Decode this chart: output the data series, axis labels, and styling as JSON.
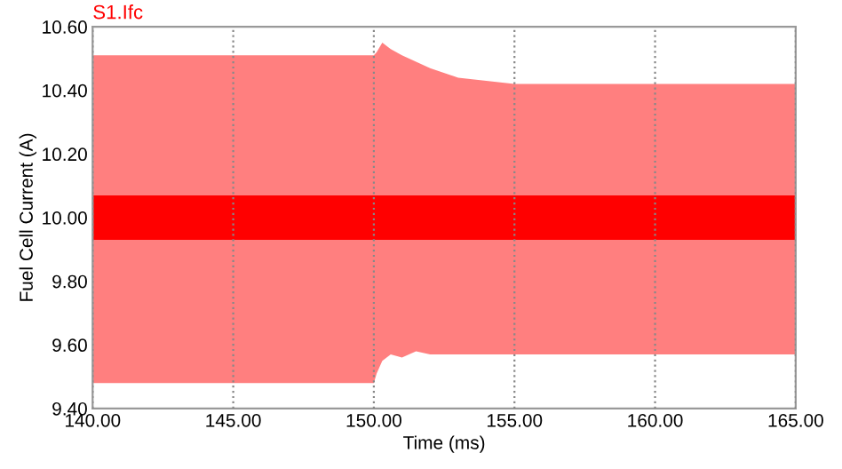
{
  "chart_data": {
    "type": "line",
    "xlabel": "Time (ms)",
    "ylabel": "Fuel Cell Current (A)",
    "xlim": [
      140,
      165
    ],
    "ylim": [
      9.4,
      10.6
    ],
    "xticks": [
      {
        "value": 140,
        "label": "140.00"
      },
      {
        "value": 145,
        "label": "145.00"
      },
      {
        "value": 150,
        "label": "150.00"
      },
      {
        "value": 155,
        "label": "155.00"
      },
      {
        "value": 160,
        "label": "160.00"
      },
      {
        "value": 165,
        "label": "165.00"
      }
    ],
    "yticks": [
      {
        "value": 9.4,
        "label": "9.40"
      },
      {
        "value": 9.6,
        "label": "9.60"
      },
      {
        "value": 9.8,
        "label": "9.80"
      },
      {
        "value": 10.0,
        "label": "10.00"
      },
      {
        "value": 10.2,
        "label": "10.20"
      },
      {
        "value": 10.4,
        "label": "10.40"
      },
      {
        "value": 10.6,
        "label": "10.60"
      }
    ],
    "grid": "x",
    "legend": "top left",
    "line_style": "solid",
    "series": [
      {
        "name": "S1.Ifc",
        "color": "#ff0000",
        "x": [
          140,
          150.0,
          150.1,
          150.3,
          150.6,
          151,
          151.5,
          152,
          153,
          154,
          155,
          160,
          165
        ],
        "values": [
          10.0,
          10.0,
          10.0,
          10.0,
          10.0,
          10.0,
          10.0,
          10.0,
          10.0,
          10.0,
          10.0,
          10.0,
          10.0
        ],
        "upper": [
          10.51,
          10.51,
          10.52,
          10.55,
          10.53,
          10.51,
          10.49,
          10.47,
          10.44,
          10.43,
          10.42,
          10.42,
          10.42
        ],
        "lower": [
          9.48,
          9.48,
          9.51,
          9.55,
          9.57,
          9.56,
          9.58,
          9.57,
          9.57,
          9.57,
          9.57,
          9.57,
          9.57
        ]
      }
    ]
  }
}
